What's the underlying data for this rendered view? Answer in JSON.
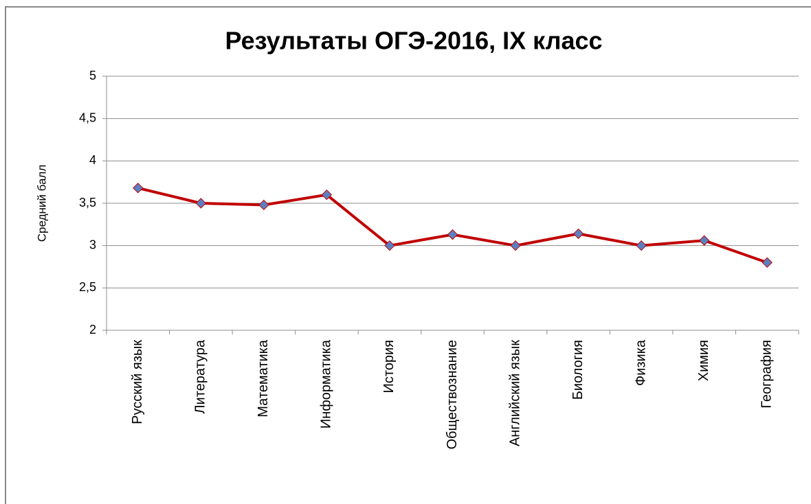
{
  "chart_data": {
    "type": "line",
    "title": "Результаты ОГЭ-2016, IX класс",
    "y_label": "Средний балл",
    "categories": [
      "Русский язык",
      "Литература",
      "Математика",
      "Информатика",
      "История",
      "Обществознание",
      "Английский язык",
      "Биология",
      "Физика",
      "Химия",
      "География"
    ],
    "series": [
      {
        "color": "#c00000",
        "marker_color": "#5b80c2",
        "values": [
          3.68,
          3.5,
          3.48,
          3.6,
          3.0,
          3.13,
          3.0,
          3.14,
          3.0,
          3.06,
          2.8
        ]
      }
    ],
    "ylim": [
      2,
      5
    ],
    "yticks": [
      2,
      {
        "value": 2.5,
        "label": "2,5"
      },
      3,
      {
        "value": 3.5,
        "label": "3,5"
      },
      4,
      {
        "value": 4.5,
        "label": "4,5"
      },
      5
    ],
    "grid": true
  }
}
